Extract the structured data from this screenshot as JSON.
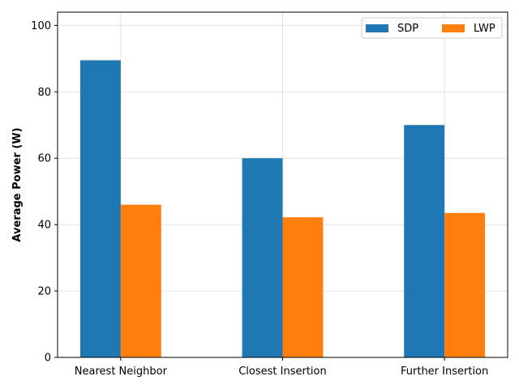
{
  "chart_data": {
    "type": "bar",
    "categories": [
      "Nearest Neighbor",
      "Closest Insertion",
      "Further Insertion"
    ],
    "series": [
      {
        "name": "SDP",
        "values": [
          89.5,
          60.0,
          70.0
        ],
        "color": "#1f77b4"
      },
      {
        "name": "LWP",
        "values": [
          46.0,
          42.2,
          43.5
        ],
        "color": "#ff7f0e"
      }
    ],
    "xlabel": "",
    "ylabel": "Average Power (W)",
    "ylim": [
      0,
      104
    ],
    "yticks": [
      0,
      20,
      40,
      60,
      80,
      100
    ],
    "grid": true,
    "legend_position": "top-right"
  }
}
